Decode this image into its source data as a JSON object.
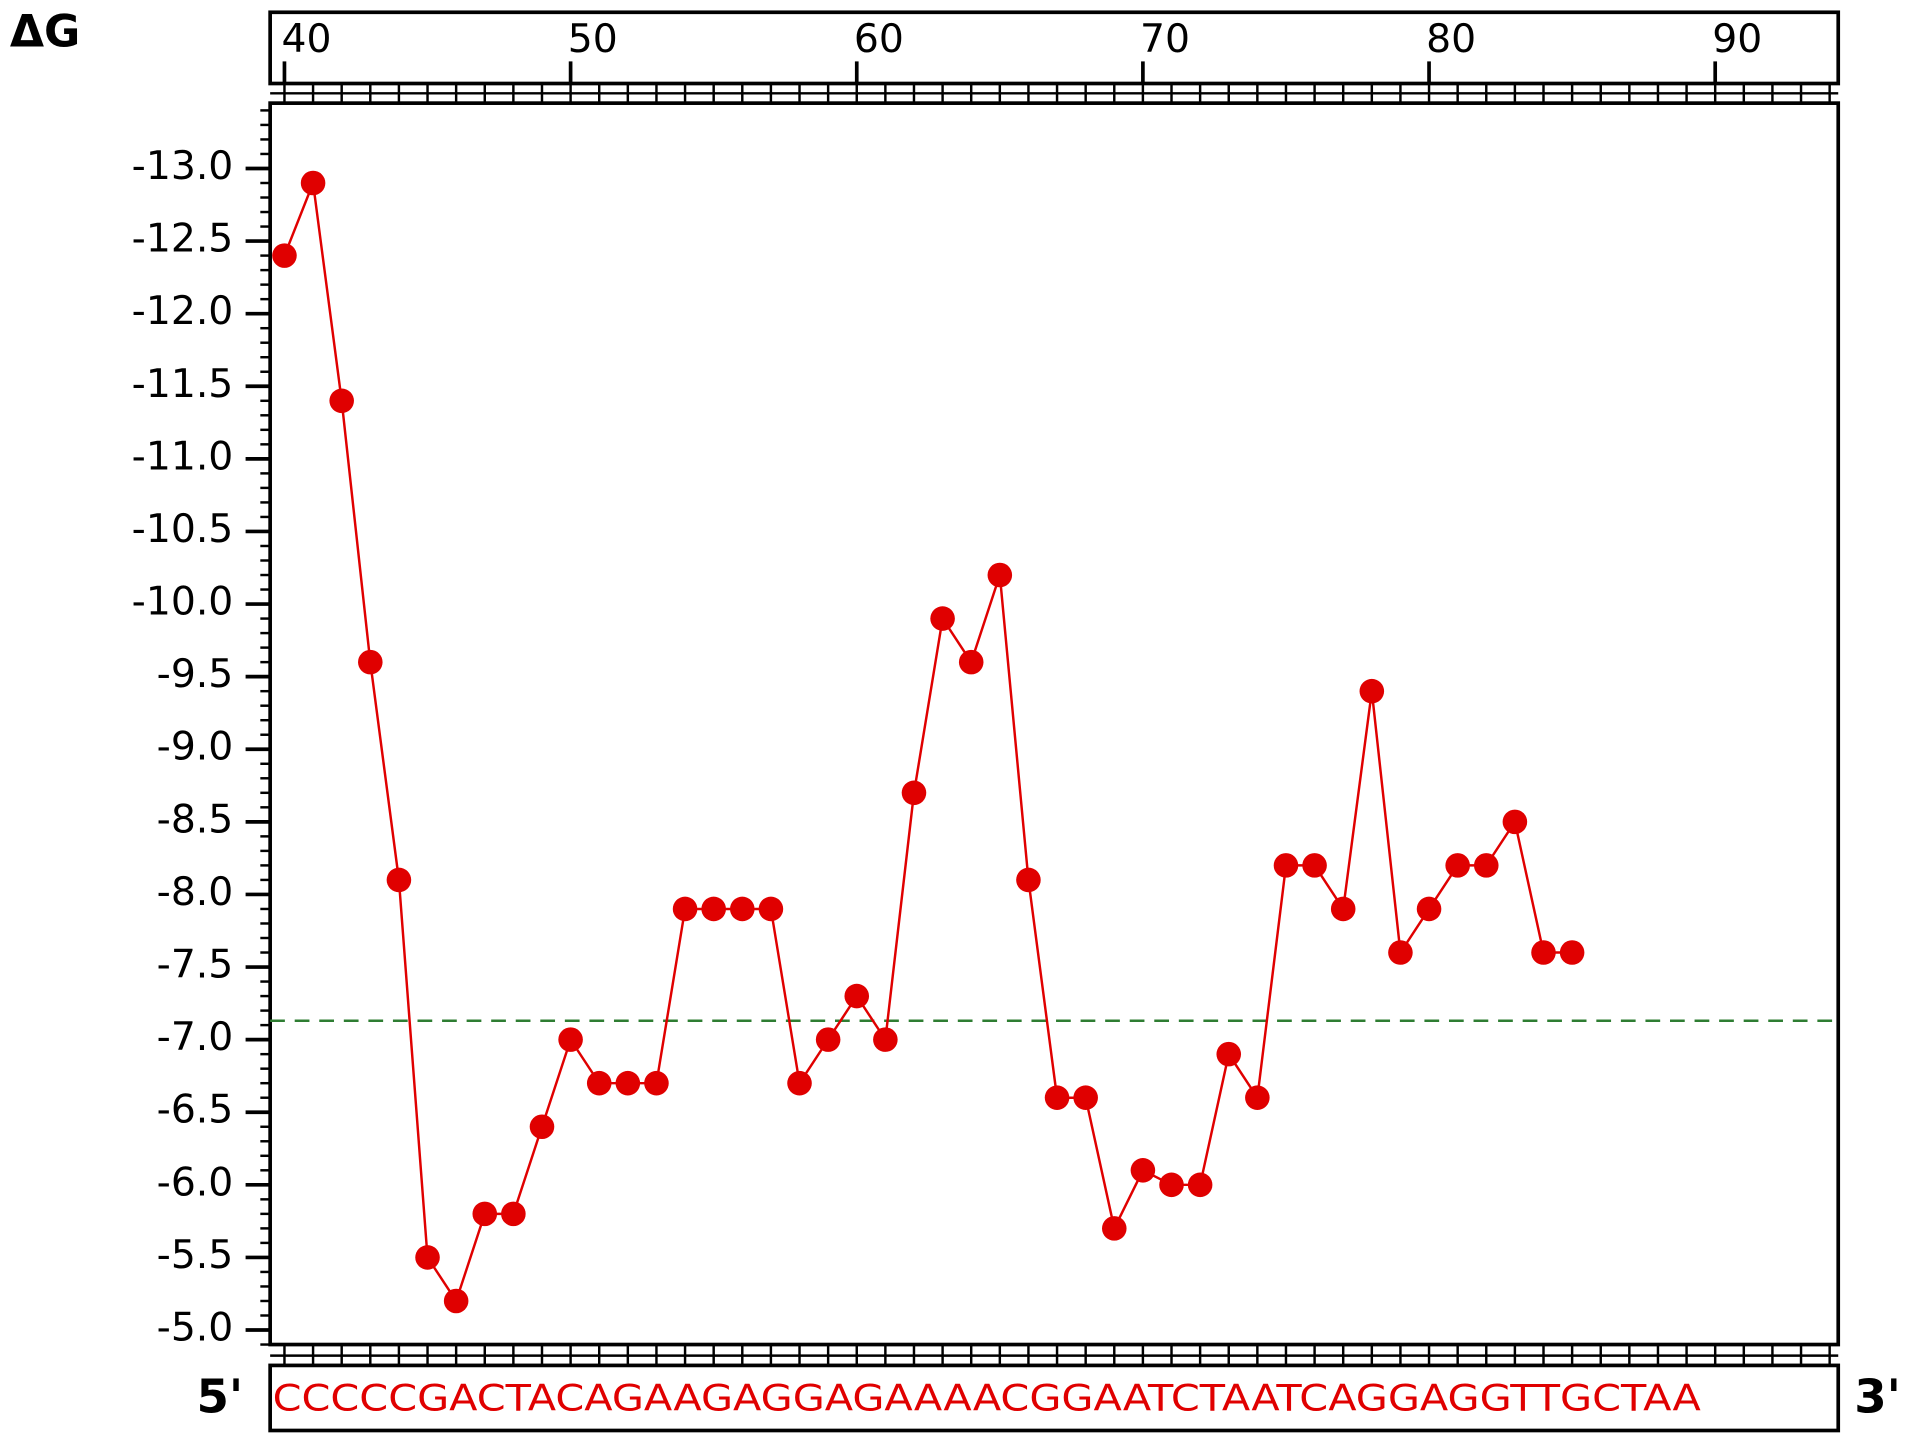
{
  "chart_data": {
    "type": "line",
    "y_label": "ΔG",
    "x": [
      40,
      41,
      42,
      43,
      44,
      45,
      46,
      47,
      48,
      49,
      50,
      51,
      52,
      53,
      54,
      55,
      56,
      57,
      58,
      59,
      60,
      61,
      62,
      63,
      64,
      65,
      66,
      67,
      68,
      69,
      70,
      71,
      72,
      73,
      74,
      75,
      76,
      77,
      78,
      79,
      80,
      81,
      82,
      83,
      84,
      85
    ],
    "series": [
      {
        "color": "#e00000",
        "values": [
          -12.4,
          -12.9,
          -11.4,
          -9.6,
          -8.1,
          -5.5,
          -5.2,
          -5.8,
          -5.8,
          -6.4,
          -7.0,
          -6.7,
          -6.7,
          -6.7,
          -7.9,
          -7.9,
          -7.9,
          -7.9,
          -6.7,
          -7.0,
          -7.3,
          -7.0,
          -8.7,
          -9.9,
          -9.6,
          -10.2,
          -8.1,
          -6.6,
          -6.6,
          -5.7,
          -6.1,
          -6.0,
          -6.0,
          -6.9,
          -6.6,
          -8.2,
          -8.2,
          -7.9,
          -9.4,
          -7.6,
          -7.9,
          -8.2,
          -8.2,
          -8.5,
          -7.6,
          -7.6
        ]
      }
    ],
    "xlim": [
      39.5,
      94.3
    ],
    "xticks": [
      40,
      50,
      60,
      70,
      80,
      90
    ],
    "ylim": [
      -4.9,
      -13.45
    ],
    "yticks": [
      {
        "value": -13,
        "label": "-13.0"
      },
      -12.5,
      {
        "value": -12,
        "label": "-12.0"
      },
      -11.5,
      {
        "value": -11,
        "label": "-11.0"
      },
      -10.5,
      {
        "value": -10,
        "label": "-10.0"
      },
      -9.5,
      {
        "value": -9,
        "label": "-9.0"
      },
      -8.5,
      {
        "value": -8,
        "label": "-8.0"
      },
      -7.5,
      {
        "value": -7,
        "label": "-7.0"
      },
      -6.5,
      {
        "value": -6,
        "label": "-6.0"
      },
      -5.5,
      {
        "value": -5,
        "label": "-5.0"
      }
    ],
    "threshold": {
      "value": -7.13,
      "color": "#2e7d32"
    },
    "sequence": {
      "start_label": "5'",
      "end_label": "3'",
      "text": "CCCCCGACTACAGAAGAGGAGAAAACGGAATCTAATCAGGAGGTTGCTAA"
    }
  }
}
